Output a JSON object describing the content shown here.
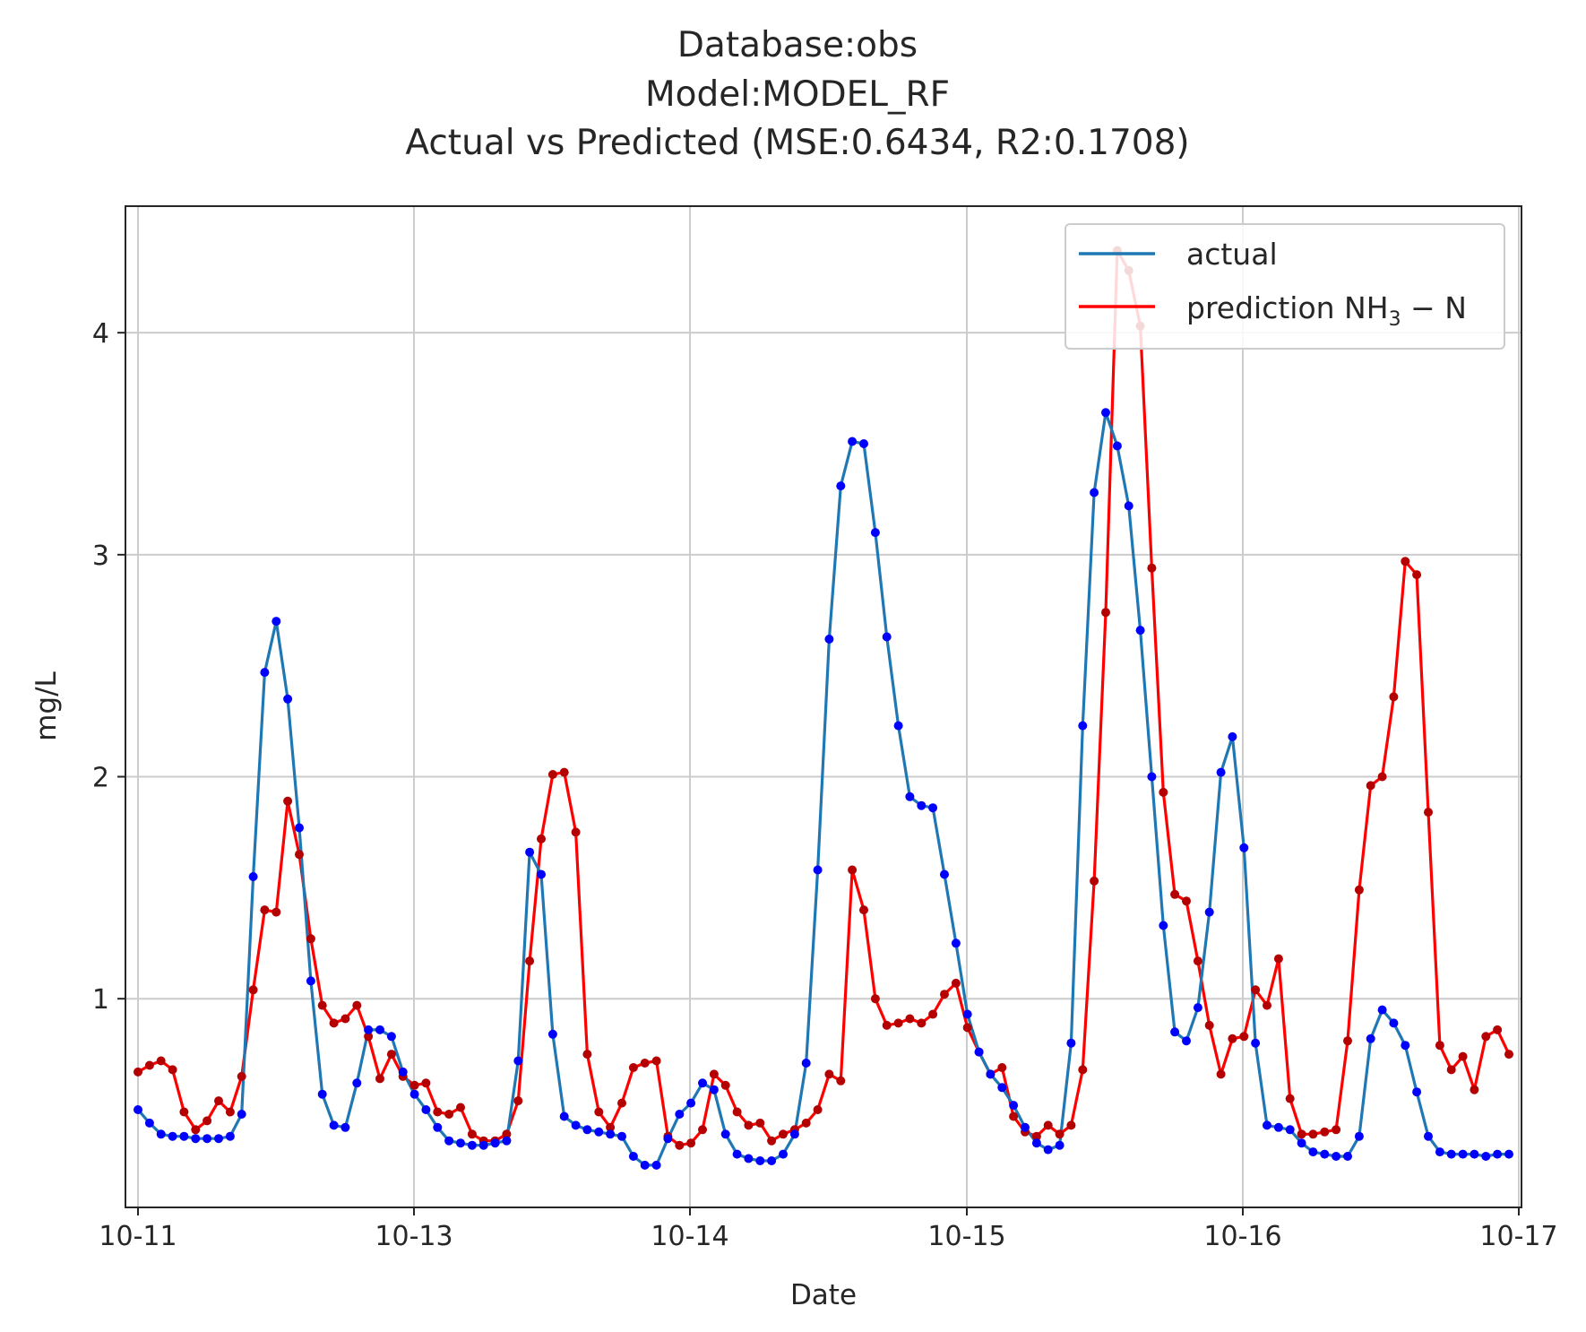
{
  "chart_data": {
    "type": "line",
    "title_lines": [
      "Database:obs",
      "Model:MODEL_RF",
      "Actual vs Predicted (MSE:0.6434, R2:0.1708)"
    ],
    "xlabel": "Date",
    "ylabel": "mg/L",
    "x_ticks": [
      "10-11",
      "10-13",
      "10-14",
      "10-15",
      "10-16",
      "10-17"
    ],
    "y_ticks": [
      "1",
      "2",
      "3",
      "4"
    ],
    "ylim": [
      0.06,
      4.57
    ],
    "grid": true,
    "legend_position": "top-right",
    "series": [
      {
        "name": "actual",
        "color": "#1f77b4",
        "marker_color": "#0000ff",
        "values": [
          0.5,
          0.44,
          0.39,
          0.38,
          0.38,
          0.37,
          0.37,
          0.37,
          0.38,
          0.48,
          1.55,
          2.47,
          2.7,
          2.35,
          1.77,
          1.08,
          0.57,
          0.43,
          0.42,
          0.62,
          0.86,
          0.86,
          0.83,
          0.67,
          0.57,
          0.5,
          0.42,
          0.36,
          0.35,
          0.34,
          0.34,
          0.35,
          0.36,
          0.72,
          1.66,
          1.56,
          0.84,
          0.47,
          0.43,
          0.41,
          0.4,
          0.39,
          0.38,
          0.29,
          0.25,
          0.25,
          0.37,
          0.48,
          0.53,
          0.62,
          0.59,
          0.39,
          0.3,
          0.28,
          0.27,
          0.27,
          0.3,
          0.39,
          0.71,
          1.58,
          2.62,
          3.31,
          3.51,
          3.5,
          3.1,
          2.63,
          2.23,
          1.91,
          1.87,
          1.86,
          1.56,
          1.25,
          0.93,
          0.76,
          0.66,
          0.6,
          0.52,
          0.42,
          0.35,
          0.32,
          0.34,
          0.8,
          2.23,
          3.28,
          3.64,
          3.49,
          3.22,
          2.66,
          2.0,
          1.33,
          0.85,
          0.81,
          0.96,
          1.39,
          2.02,
          2.18,
          1.68,
          0.8,
          0.43,
          0.42,
          0.41,
          0.35,
          0.31,
          0.3,
          0.29,
          0.29,
          0.38,
          0.82,
          0.95,
          0.89,
          0.79,
          0.58,
          0.38,
          0.31,
          0.3,
          0.3,
          0.3,
          0.29,
          0.3,
          0.3
        ]
      },
      {
        "name": "prediction NH3-N",
        "color": "#ff0000",
        "marker_color": "#b40000",
        "values": [
          0.67,
          0.7,
          0.72,
          0.68,
          0.49,
          0.41,
          0.45,
          0.54,
          0.49,
          0.65,
          1.04,
          1.4,
          1.39,
          1.89,
          1.65,
          1.27,
          0.97,
          0.89,
          0.91,
          0.97,
          0.83,
          0.64,
          0.75,
          0.65,
          0.61,
          0.62,
          0.49,
          0.48,
          0.51,
          0.39,
          0.36,
          0.36,
          0.39,
          0.54,
          1.17,
          1.72,
          2.01,
          2.02,
          1.75,
          0.75,
          0.49,
          0.42,
          0.53,
          0.69,
          0.71,
          0.72,
          0.38,
          0.34,
          0.35,
          0.41,
          0.66,
          0.61,
          0.49,
          0.43,
          0.44,
          0.36,
          0.39,
          0.41,
          0.44,
          0.5,
          0.66,
          0.63,
          1.58,
          1.4,
          1.0,
          0.88,
          0.89,
          0.91,
          0.89,
          0.93,
          1.02,
          1.07,
          0.87,
          0.76,
          0.66,
          0.69,
          0.47,
          0.4,
          0.38,
          0.43,
          0.39,
          0.43,
          0.68,
          1.53,
          2.74,
          4.37,
          4.28,
          4.03,
          2.94,
          1.93,
          1.47,
          1.44,
          1.17,
          0.88,
          0.66,
          0.82,
          0.83,
          1.04,
          0.97,
          1.18,
          0.55,
          0.39,
          0.39,
          0.4,
          0.41,
          0.81,
          1.49,
          1.96,
          2.0,
          2.36,
          2.97,
          2.91,
          1.84,
          0.79,
          0.68,
          0.74,
          0.59,
          0.83,
          0.86,
          0.75
        ]
      }
    ]
  }
}
